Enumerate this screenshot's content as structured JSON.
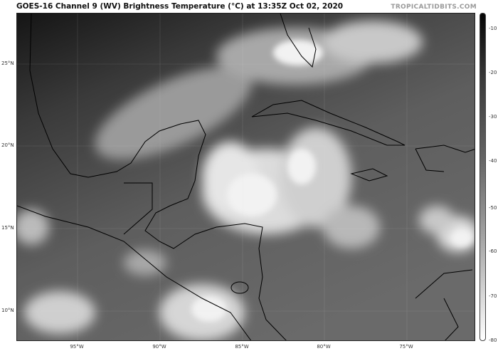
{
  "header": {
    "title": "GOES-16 Channel 9 (WV) Brightness Temperature (°C) at 13:35Z Oct 02, 2020",
    "credit": "TROPICALTIDBITS.COM"
  },
  "map": {
    "lat_labels": [
      "25°N",
      "20°N",
      "15°N",
      "10°N"
    ],
    "lon_labels": [
      "95°W",
      "90°W",
      "85°W",
      "80°W",
      "75°W"
    ],
    "colors": {
      "dry": "#1c1c1c",
      "mid": "#5a5a5a",
      "cloud": "#e8e8e8",
      "coast": "#000000"
    }
  },
  "colorbar": {
    "ticks": [
      "-10",
      "-20",
      "-30",
      "-40",
      "-50",
      "-60",
      "-70",
      "-80"
    ],
    "range": [
      -80,
      -5
    ],
    "scale": "grayscale, dark=warm, white=cold"
  }
}
